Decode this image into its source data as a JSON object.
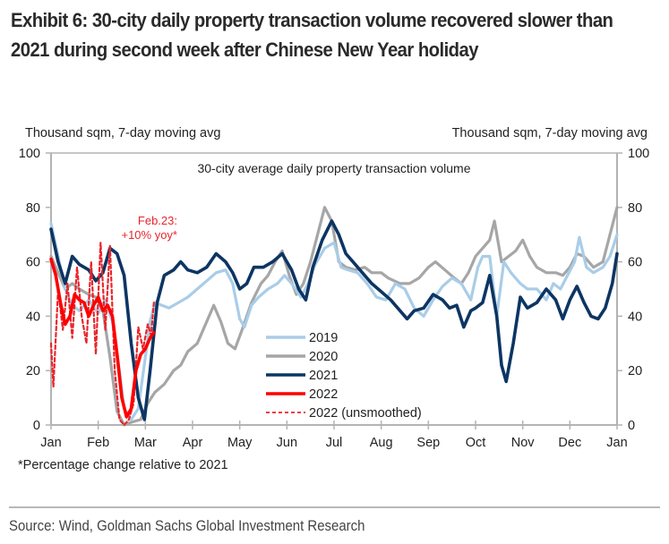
{
  "header": {
    "title": "Exhibit 6: 30-city daily property transaction volume recovered slower than 2021 during second week after Chinese New Year holiday"
  },
  "footer": {
    "footnote": "*Percentage change relative to 2021",
    "source": "Source: Wind, Goldman Sachs Global Investment Research"
  },
  "chart_data": {
    "type": "line",
    "title": "30-city average daily property transaction volume",
    "ylabel_left": "Thousand sqm, 7-day moving avg",
    "ylabel_right": "Thousand sqm, 7-day moving avg",
    "xlabel": "",
    "x_unit": "month index (0 = Jan 1, 12 = following Jan 1)",
    "xlim": [
      0,
      12
    ],
    "ylim": [
      0,
      100
    ],
    "yticks": [
      0,
      20,
      40,
      60,
      80,
      100
    ],
    "yticks_right": [
      0,
      20,
      40,
      60,
      80,
      100
    ],
    "xtick_labels": [
      "Jan",
      "Feb",
      "Mar",
      "Apr",
      "May",
      "Jun",
      "Jul",
      "Aug",
      "Sep",
      "Oct",
      "Nov",
      "Dec",
      "Jan"
    ],
    "grid": false,
    "legend_position": "bottom-center",
    "annotation": {
      "text_line1": "Feb.23:",
      "text_line2": "+10% yoy*",
      "x": 1.75,
      "y": 78,
      "color": "#e8262b"
    },
    "series": [
      {
        "name": "2019",
        "color": "#a9cde8",
        "style": "solid",
        "points": [
          [
            0,
            74
          ],
          [
            0.15,
            62
          ],
          [
            0.3,
            50
          ],
          [
            0.45,
            44
          ],
          [
            0.6,
            42
          ],
          [
            0.8,
            46
          ],
          [
            1.0,
            41
          ],
          [
            1.15,
            46
          ],
          [
            1.3,
            38
          ],
          [
            1.45,
            20
          ],
          [
            1.55,
            6
          ],
          [
            1.7,
            2
          ],
          [
            1.85,
            6
          ],
          [
            2.0,
            25
          ],
          [
            2.1,
            38
          ],
          [
            2.2,
            45
          ],
          [
            2.35,
            44
          ],
          [
            2.5,
            43
          ],
          [
            2.7,
            45
          ],
          [
            2.9,
            47
          ],
          [
            3.1,
            50
          ],
          [
            3.3,
            53
          ],
          [
            3.5,
            56
          ],
          [
            3.7,
            57
          ],
          [
            3.85,
            52
          ],
          [
            4.0,
            39
          ],
          [
            4.1,
            36
          ],
          [
            4.25,
            44
          ],
          [
            4.4,
            47
          ],
          [
            4.6,
            50
          ],
          [
            4.8,
            52
          ],
          [
            4.95,
            55
          ],
          [
            5.1,
            52
          ],
          [
            5.3,
            47
          ],
          [
            5.45,
            52
          ],
          [
            5.6,
            59
          ],
          [
            5.8,
            65
          ],
          [
            6.0,
            67
          ],
          [
            6.15,
            58
          ],
          [
            6.3,
            57
          ],
          [
            6.5,
            56
          ],
          [
            6.7,
            52
          ],
          [
            6.9,
            47
          ],
          [
            7.1,
            46
          ],
          [
            7.3,
            52
          ],
          [
            7.5,
            50
          ],
          [
            7.7,
            43
          ],
          [
            7.9,
            40
          ],
          [
            8.1,
            46
          ],
          [
            8.3,
            51
          ],
          [
            8.5,
            54
          ],
          [
            8.7,
            52
          ],
          [
            8.9,
            46
          ],
          [
            9.05,
            58
          ],
          [
            9.15,
            62
          ],
          [
            9.3,
            62
          ],
          [
            9.45,
            40
          ],
          [
            9.6,
            60
          ],
          [
            9.75,
            56
          ],
          [
            9.95,
            52
          ],
          [
            10.1,
            50
          ],
          [
            10.3,
            50
          ],
          [
            10.5,
            46
          ],
          [
            10.65,
            52
          ],
          [
            10.8,
            50
          ],
          [
            10.95,
            55
          ],
          [
            11.1,
            60
          ],
          [
            11.2,
            69
          ],
          [
            11.35,
            58
          ],
          [
            11.5,
            56
          ],
          [
            11.7,
            58
          ],
          [
            11.85,
            62
          ],
          [
            12.0,
            70
          ]
        ]
      },
      {
        "name": "2020",
        "color": "#a6a6a6",
        "style": "solid",
        "points": [
          [
            0,
            62
          ],
          [
            0.15,
            56
          ],
          [
            0.3,
            50
          ],
          [
            0.45,
            52
          ],
          [
            0.6,
            50
          ],
          [
            0.8,
            48
          ],
          [
            0.95,
            47
          ],
          [
            1.1,
            42
          ],
          [
            1.25,
            25
          ],
          [
            1.4,
            5
          ],
          [
            1.55,
            0
          ],
          [
            1.7,
            1
          ],
          [
            1.9,
            2
          ],
          [
            2.05,
            8
          ],
          [
            2.2,
            12
          ],
          [
            2.4,
            15
          ],
          [
            2.6,
            20
          ],
          [
            2.75,
            22
          ],
          [
            2.9,
            27
          ],
          [
            3.1,
            30
          ],
          [
            3.3,
            38
          ],
          [
            3.45,
            44
          ],
          [
            3.6,
            38
          ],
          [
            3.75,
            30
          ],
          [
            3.9,
            28
          ],
          [
            4.05,
            35
          ],
          [
            4.25,
            45
          ],
          [
            4.45,
            52
          ],
          [
            4.6,
            55
          ],
          [
            4.75,
            60
          ],
          [
            4.9,
            64
          ],
          [
            5.05,
            55
          ],
          [
            5.2,
            48
          ],
          [
            5.35,
            52
          ],
          [
            5.5,
            60
          ],
          [
            5.65,
            70
          ],
          [
            5.8,
            80
          ],
          [
            5.95,
            75
          ],
          [
            6.1,
            60
          ],
          [
            6.25,
            58
          ],
          [
            6.45,
            57
          ],
          [
            6.65,
            58
          ],
          [
            6.8,
            56
          ],
          [
            7.0,
            56
          ],
          [
            7.15,
            54
          ],
          [
            7.4,
            52
          ],
          [
            7.6,
            52
          ],
          [
            7.8,
            54
          ],
          [
            8.0,
            58
          ],
          [
            8.15,
            60
          ],
          [
            8.35,
            57
          ],
          [
            8.55,
            54
          ],
          [
            8.7,
            52
          ],
          [
            8.85,
            56
          ],
          [
            9.0,
            62
          ],
          [
            9.15,
            65
          ],
          [
            9.3,
            68
          ],
          [
            9.4,
            75
          ],
          [
            9.55,
            60
          ],
          [
            9.7,
            62
          ],
          [
            9.85,
            64
          ],
          [
            10.0,
            68
          ],
          [
            10.15,
            62
          ],
          [
            10.3,
            58
          ],
          [
            10.5,
            56
          ],
          [
            10.7,
            56
          ],
          [
            10.85,
            55
          ],
          [
            11.0,
            58
          ],
          [
            11.15,
            63
          ],
          [
            11.3,
            62
          ],
          [
            11.5,
            58
          ],
          [
            11.7,
            60
          ],
          [
            11.85,
            70
          ],
          [
            12.0,
            80
          ]
        ]
      },
      {
        "name": "2021",
        "color": "#0c3563",
        "style": "solid",
        "points": [
          [
            0,
            72
          ],
          [
            0.15,
            60
          ],
          [
            0.3,
            52
          ],
          [
            0.45,
            62
          ],
          [
            0.6,
            59
          ],
          [
            0.8,
            57
          ],
          [
            0.95,
            53
          ],
          [
            1.1,
            56
          ],
          [
            1.25,
            65
          ],
          [
            1.4,
            63
          ],
          [
            1.55,
            55
          ],
          [
            1.7,
            30
          ],
          [
            1.85,
            10
          ],
          [
            1.98,
            2
          ],
          [
            2.1,
            20
          ],
          [
            2.25,
            45
          ],
          [
            2.4,
            55
          ],
          [
            2.6,
            57
          ],
          [
            2.75,
            60
          ],
          [
            2.9,
            57
          ],
          [
            3.1,
            56
          ],
          [
            3.3,
            58
          ],
          [
            3.5,
            63
          ],
          [
            3.7,
            60
          ],
          [
            3.85,
            56
          ],
          [
            4.0,
            50
          ],
          [
            4.15,
            52
          ],
          [
            4.3,
            58
          ],
          [
            4.5,
            58
          ],
          [
            4.7,
            60
          ],
          [
            4.9,
            63
          ],
          [
            5.0,
            60
          ],
          [
            5.1,
            57
          ],
          [
            5.25,
            50
          ],
          [
            5.4,
            46
          ],
          [
            5.55,
            58
          ],
          [
            5.75,
            68
          ],
          [
            5.95,
            75
          ],
          [
            6.1,
            70
          ],
          [
            6.25,
            63
          ],
          [
            6.4,
            60
          ],
          [
            6.6,
            56
          ],
          [
            6.8,
            52
          ],
          [
            7.0,
            49
          ],
          [
            7.2,
            46
          ],
          [
            7.4,
            42
          ],
          [
            7.55,
            39
          ],
          [
            7.7,
            42
          ],
          [
            7.9,
            43
          ],
          [
            8.1,
            48
          ],
          [
            8.3,
            46
          ],
          [
            8.45,
            43
          ],
          [
            8.6,
            44
          ],
          [
            8.75,
            36
          ],
          [
            8.9,
            42
          ],
          [
            9.0,
            43
          ],
          [
            9.15,
            45
          ],
          [
            9.3,
            55
          ],
          [
            9.45,
            40
          ],
          [
            9.55,
            22
          ],
          [
            9.65,
            16
          ],
          [
            9.8,
            30
          ],
          [
            9.95,
            47
          ],
          [
            10.1,
            43
          ],
          [
            10.3,
            45
          ],
          [
            10.5,
            50
          ],
          [
            10.7,
            46
          ],
          [
            10.85,
            39
          ],
          [
            11.0,
            46
          ],
          [
            11.15,
            51
          ],
          [
            11.3,
            45
          ],
          [
            11.45,
            40
          ],
          [
            11.6,
            39
          ],
          [
            11.75,
            43
          ],
          [
            11.9,
            52
          ],
          [
            12.0,
            63
          ]
        ]
      },
      {
        "name": "2022",
        "color": "#ff0000",
        "style": "solid",
        "points": [
          [
            0,
            61
          ],
          [
            0.1,
            55
          ],
          [
            0.2,
            45
          ],
          [
            0.3,
            37
          ],
          [
            0.4,
            40
          ],
          [
            0.5,
            48
          ],
          [
            0.6,
            46
          ],
          [
            0.7,
            45
          ],
          [
            0.8,
            40
          ],
          [
            0.9,
            44
          ],
          [
            1.0,
            47
          ],
          [
            1.1,
            42
          ],
          [
            1.2,
            44
          ],
          [
            1.3,
            40
          ],
          [
            1.4,
            26
          ],
          [
            1.5,
            10
          ],
          [
            1.6,
            3
          ],
          [
            1.7,
            6
          ],
          [
            1.8,
            20
          ],
          [
            1.9,
            26
          ],
          [
            2.0,
            28
          ],
          [
            2.1,
            32
          ],
          [
            2.18,
            34
          ]
        ]
      },
      {
        "name": "2022 (unsmoothed)",
        "color": "#e8262b",
        "style": "dashed",
        "points": [
          [
            0,
            30
          ],
          [
            0.05,
            14
          ],
          [
            0.15,
            50
          ],
          [
            0.25,
            35
          ],
          [
            0.35,
            52
          ],
          [
            0.45,
            32
          ],
          [
            0.55,
            58
          ],
          [
            0.65,
            40
          ],
          [
            0.75,
            30
          ],
          [
            0.85,
            60
          ],
          [
            0.95,
            26
          ],
          [
            1.05,
            67
          ],
          [
            1.15,
            35
          ],
          [
            1.25,
            66
          ],
          [
            1.35,
            20
          ],
          [
            1.45,
            2
          ],
          [
            1.55,
            0
          ],
          [
            1.65,
            2
          ],
          [
            1.75,
            8
          ],
          [
            1.85,
            36
          ],
          [
            1.95,
            28
          ],
          [
            2.05,
            37
          ],
          [
            2.12,
            33
          ],
          [
            2.18,
            45
          ]
        ]
      }
    ]
  }
}
